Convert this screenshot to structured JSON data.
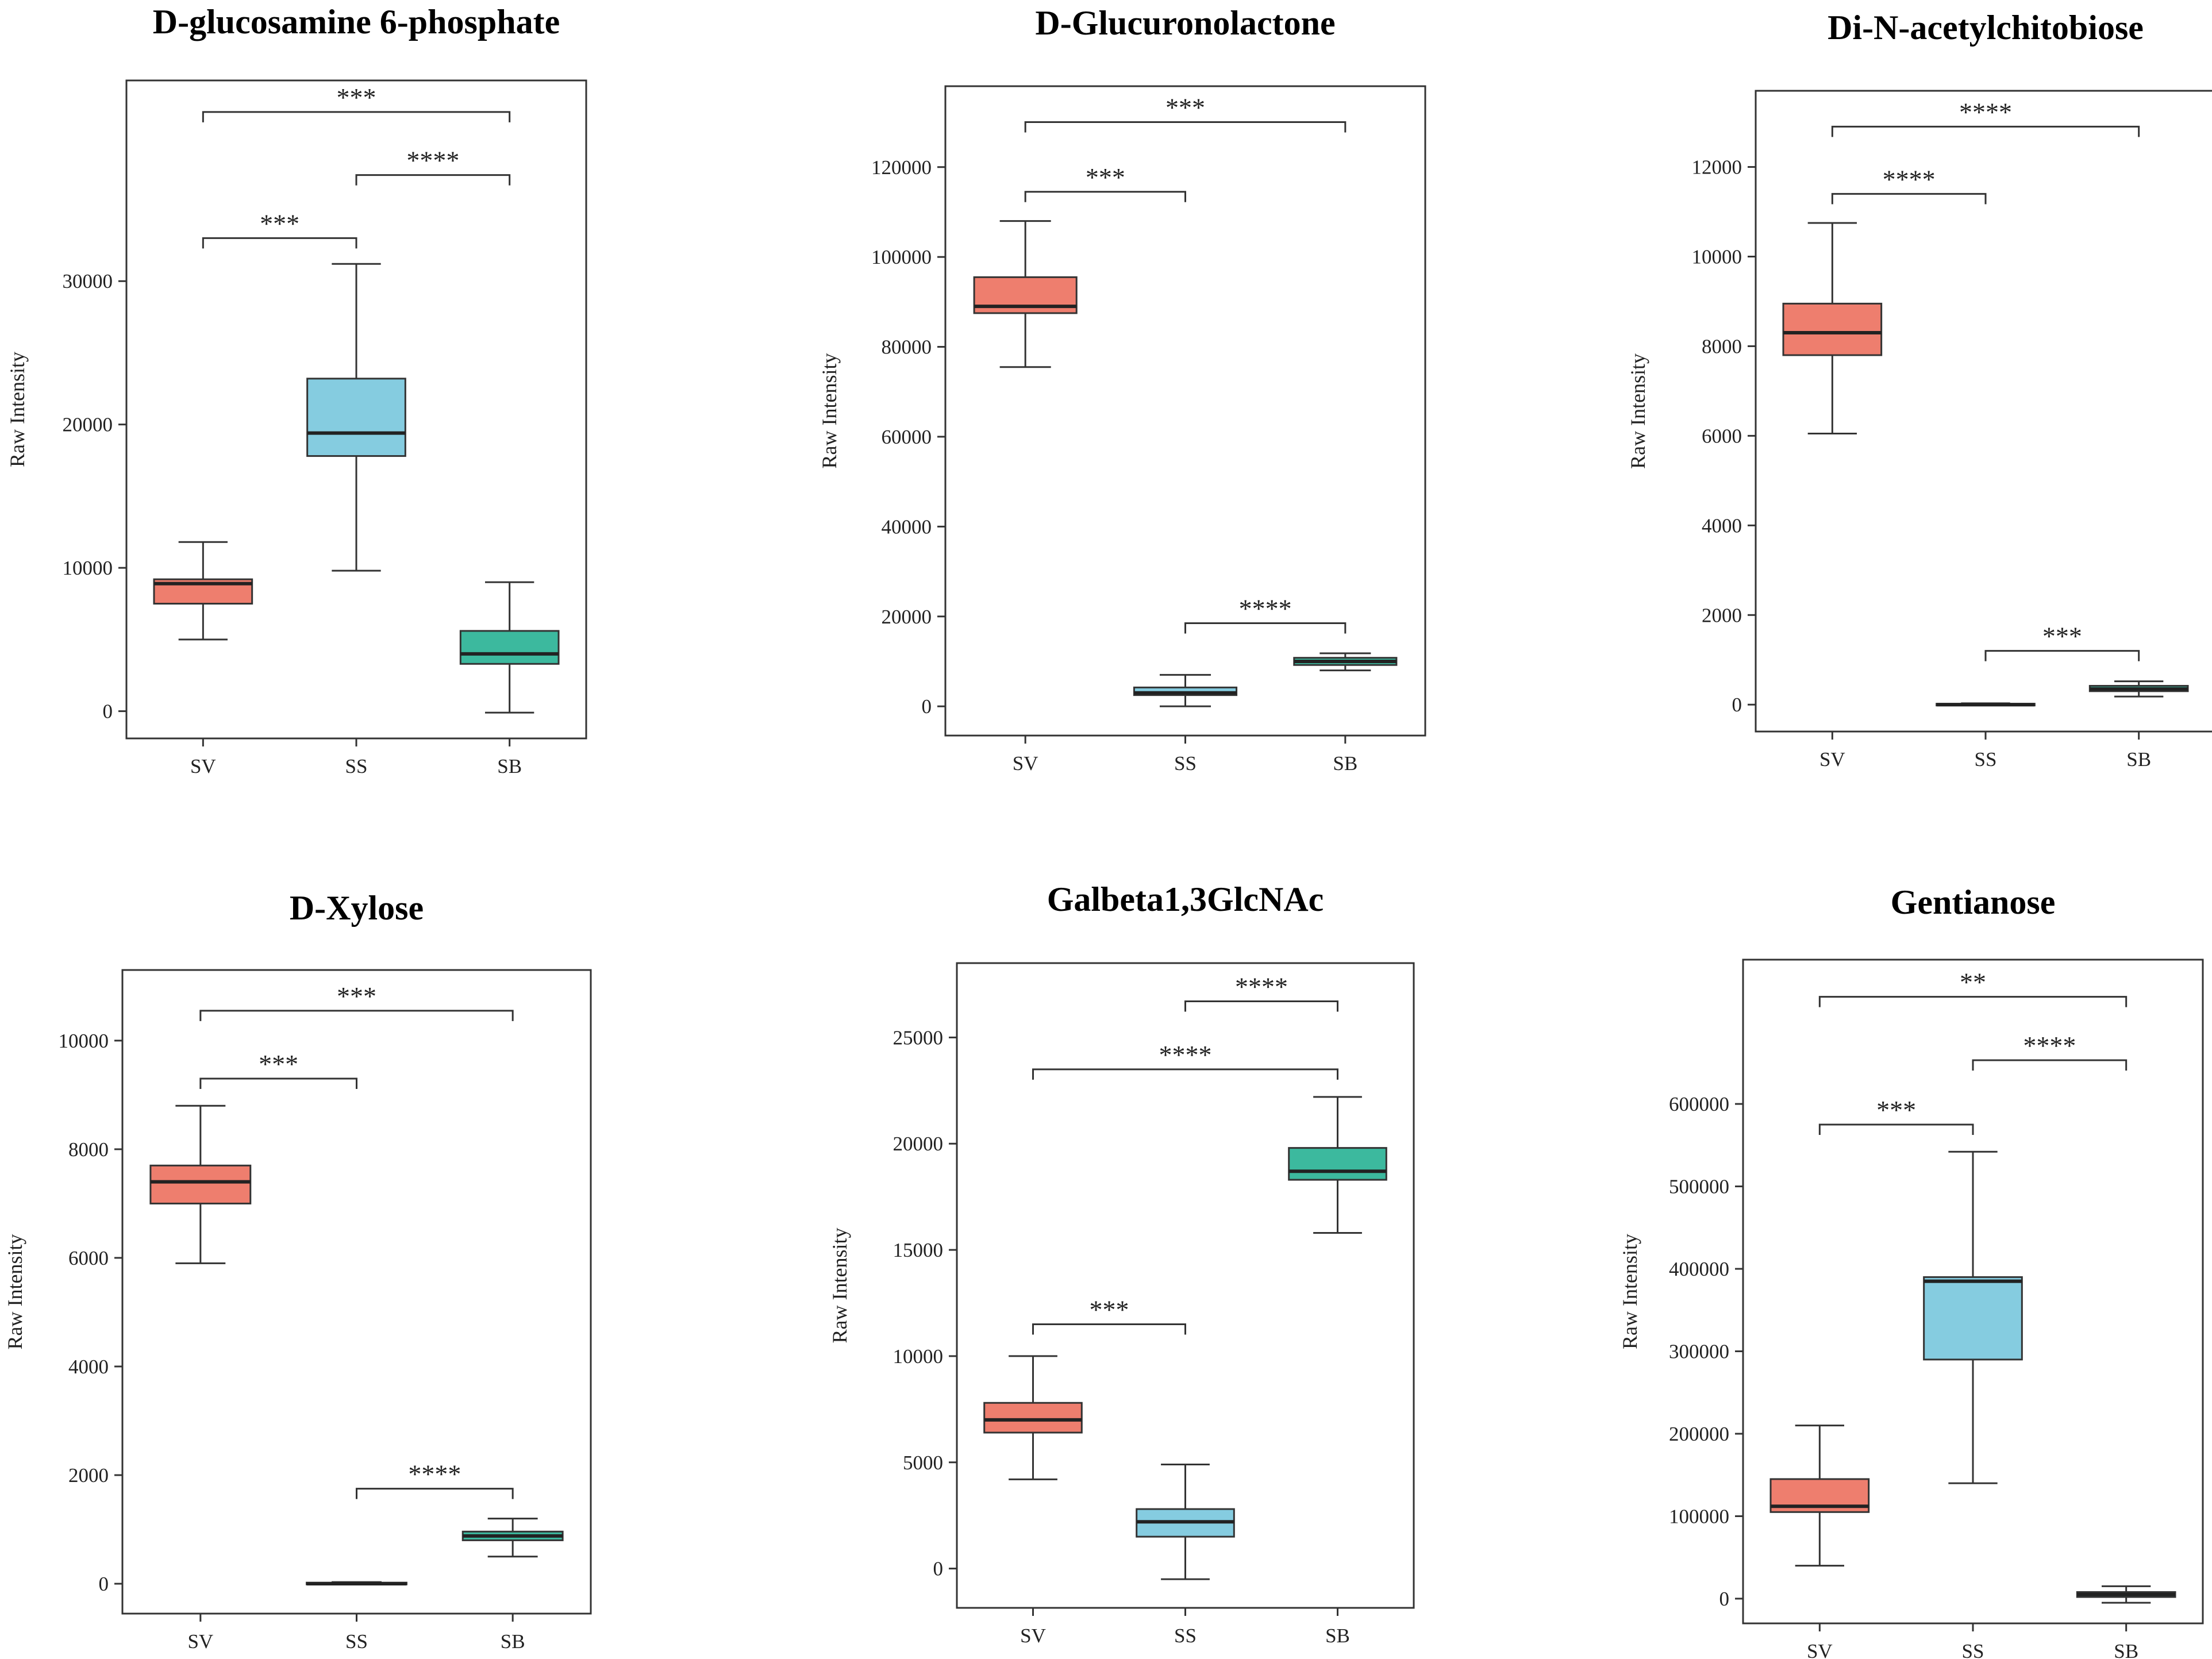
{
  "colors": {
    "SV": "#ee7e6e",
    "SS": "#85cce0",
    "SB": "#3cb99e",
    "line": "#333333"
  },
  "chart_data": [
    {
      "type": "box",
      "title": "D-glucosamine 6-phosphate",
      "ylabel": "Raw Intensity",
      "categories": [
        "SV",
        "SS",
        "SB"
      ],
      "ylim": [
        -1900,
        44000
      ],
      "yticks": [
        0,
        10000,
        20000,
        30000
      ],
      "boxes": [
        {
          "group": "SV",
          "whisker_low": 5000,
          "q1": 7500,
          "median": 8900,
          "q3": 9200,
          "whisker_high": 11800
        },
        {
          "group": "SS",
          "whisker_low": 9800,
          "q1": 17800,
          "median": 19400,
          "q3": 23200,
          "whisker_high": 31200
        },
        {
          "group": "SB",
          "whisker_low": -100,
          "q1": 3300,
          "median": 4000,
          "q3": 5600,
          "whisker_high": 9000
        }
      ],
      "comparisons": [
        {
          "from": "SV",
          "to": "SB",
          "label": "***",
          "y": 41800
        },
        {
          "from": "SS",
          "to": "SB",
          "label": "****",
          "y": 37400
        },
        {
          "from": "SV",
          "to": "SS",
          "label": "***",
          "y": 33000
        }
      ]
    },
    {
      "type": "box",
      "title": "D-Glucuronolactone",
      "ylabel": "Raw Intensity",
      "categories": [
        "SV",
        "SS",
        "SB"
      ],
      "ylim": [
        -6500,
        138000
      ],
      "yticks": [
        0,
        20000,
        40000,
        60000,
        80000,
        100000,
        120000
      ],
      "boxes": [
        {
          "group": "SV",
          "whisker_low": 75500,
          "q1": 87500,
          "median": 89000,
          "q3": 95500,
          "whisker_high": 108000
        },
        {
          "group": "SS",
          "whisker_low": 0,
          "q1": 2500,
          "median": 3000,
          "q3": 4200,
          "whisker_high": 7000
        },
        {
          "group": "SB",
          "whisker_low": 8000,
          "q1": 9200,
          "median": 10000,
          "q3": 10800,
          "whisker_high": 11800
        }
      ],
      "comparisons": [
        {
          "from": "SV",
          "to": "SB",
          "label": "***",
          "y": 130000
        },
        {
          "from": "SV",
          "to": "SS",
          "label": "***",
          "y": 114500
        },
        {
          "from": "SS",
          "to": "SB",
          "label": "****",
          "y": 18500
        }
      ]
    },
    {
      "type": "box",
      "title": "Di-N-acetylchitobiose",
      "ylabel": "Raw Intensity",
      "categories": [
        "SV",
        "SS",
        "SB"
      ],
      "ylim": [
        -600,
        13700
      ],
      "yticks": [
        0,
        2000,
        4000,
        6000,
        8000,
        10000,
        12000
      ],
      "boxes": [
        {
          "group": "SV",
          "whisker_low": 6050,
          "q1": 7800,
          "median": 8300,
          "q3": 8950,
          "whisker_high": 10750
        },
        {
          "group": "SS",
          "whisker_low": 0,
          "q1": 0,
          "median": 0,
          "q3": 20,
          "whisker_high": 30
        },
        {
          "group": "SB",
          "whisker_low": 180,
          "q1": 300,
          "median": 350,
          "q3": 420,
          "whisker_high": 520
        }
      ],
      "comparisons": [
        {
          "from": "SV",
          "to": "SB",
          "label": "****",
          "y": 12900
        },
        {
          "from": "SV",
          "to": "SS",
          "label": "****",
          "y": 11400
        },
        {
          "from": "SS",
          "to": "SB",
          "label": "***",
          "y": 1200
        }
      ]
    },
    {
      "type": "box",
      "title": "D-Xylose",
      "ylabel": "Raw Intensity",
      "categories": [
        "SV",
        "SS",
        "SB"
      ],
      "ylim": [
        -550,
        11300
      ],
      "yticks": [
        0,
        2000,
        4000,
        6000,
        8000,
        10000
      ],
      "boxes": [
        {
          "group": "SV",
          "whisker_low": 5900,
          "q1": 7000,
          "median": 7400,
          "q3": 7700,
          "whisker_high": 8800
        },
        {
          "group": "SS",
          "whisker_low": 0,
          "q1": 0,
          "median": 0,
          "q3": 20,
          "whisker_high": 30
        },
        {
          "group": "SB",
          "whisker_low": 500,
          "q1": 800,
          "median": 880,
          "q3": 960,
          "whisker_high": 1200
        }
      ],
      "comparisons": [
        {
          "from": "SV",
          "to": "SB",
          "label": "***",
          "y": 10550
        },
        {
          "from": "SV",
          "to": "SS",
          "label": "***",
          "y": 9300
        },
        {
          "from": "SS",
          "to": "SB",
          "label": "****",
          "y": 1750
        }
      ]
    },
    {
      "type": "box",
      "title": "Galbeta1,3GlcNAc",
      "ylabel": "Raw Intensity",
      "categories": [
        "SV",
        "SS",
        "SB"
      ],
      "ylim": [
        -1850,
        28500
      ],
      "yticks": [
        0,
        5000,
        10000,
        15000,
        20000,
        25000
      ],
      "boxes": [
        {
          "group": "SV",
          "whisker_low": 4200,
          "q1": 6400,
          "median": 7000,
          "q3": 7800,
          "whisker_high": 10000
        },
        {
          "group": "SS",
          "whisker_low": -500,
          "q1": 1500,
          "median": 2200,
          "q3": 2800,
          "whisker_high": 4900
        },
        {
          "group": "SB",
          "whisker_low": 15800,
          "q1": 18300,
          "median": 18700,
          "q3": 19800,
          "whisker_high": 22200
        }
      ],
      "comparisons": [
        {
          "from": "SS",
          "to": "SB",
          "label": "****",
          "y": 26700
        },
        {
          "from": "SV",
          "to": "SB",
          "label": "****",
          "y": 23500
        },
        {
          "from": "SV",
          "to": "SS",
          "label": "***",
          "y": 11500
        }
      ]
    },
    {
      "type": "box",
      "title": "Gentianose",
      "ylabel": "Raw Intensity",
      "categories": [
        "SV",
        "SS",
        "SB"
      ],
      "ylim": [
        -30000,
        775000
      ],
      "yticks": [
        0,
        100000,
        200000,
        300000,
        400000,
        500000,
        600000
      ],
      "boxes": [
        {
          "group": "SV",
          "whisker_low": 40000,
          "q1": 105000,
          "median": 112000,
          "q3": 145000,
          "whisker_high": 210000
        },
        {
          "group": "SS",
          "whisker_low": 140000,
          "q1": 290000,
          "median": 385000,
          "q3": 390000,
          "whisker_high": 542000
        },
        {
          "group": "SB",
          "whisker_low": -5000,
          "q1": 2000,
          "median": 5000,
          "q3": 8000,
          "whisker_high": 15000
        }
      ],
      "comparisons": [
        {
          "from": "SV",
          "to": "SB",
          "label": "**",
          "y": 730000
        },
        {
          "from": "SS",
          "to": "SB",
          "label": "****",
          "y": 653000
        },
        {
          "from": "SV",
          "to": "SS",
          "label": "***",
          "y": 575000
        }
      ]
    }
  ]
}
